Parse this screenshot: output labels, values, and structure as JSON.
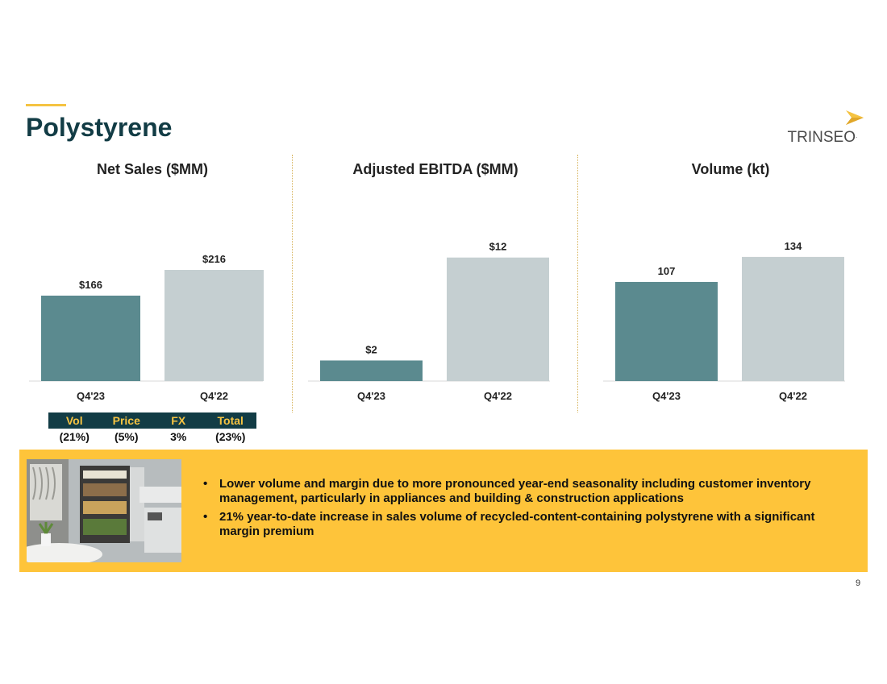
{
  "slide": {
    "title": "Polystyrene",
    "page_number": "9"
  },
  "logo": {
    "text": "TRINSEO",
    "trademark": ".",
    "icon": "trinseo-chevron-icon"
  },
  "colors": {
    "current_bar": "#5b8a8f",
    "prior_bar": "#c5cfd1",
    "title": "#123c45",
    "accent": "#f5c342",
    "callout_bg": "#fec43a"
  },
  "chart_data": [
    {
      "type": "bar",
      "title": "Net Sales ($MM)",
      "categories": [
        "Q4'23",
        "Q4'22"
      ],
      "values": [
        166,
        216
      ],
      "value_labels": [
        "$166",
        "$216"
      ],
      "ylim": [
        0,
        360
      ],
      "grid": false
    },
    {
      "type": "bar",
      "title": "Adjusted EBITDA ($MM)",
      "categories": [
        "Q4'23",
        "Q4'22"
      ],
      "values": [
        2,
        12
      ],
      "value_labels": [
        "$2",
        "$12"
      ],
      "ylim": [
        0,
        18
      ],
      "grid": false
    },
    {
      "type": "bar",
      "title": "Volume (kt)",
      "categories": [
        "Q4'23",
        "Q4'22"
      ],
      "values": [
        107,
        134
      ],
      "value_labels": [
        "107",
        "134"
      ],
      "ylim": [
        0,
        200
      ],
      "grid": false
    }
  ],
  "bridge": {
    "headers": [
      "Vol",
      "Price",
      "FX",
      "Total"
    ],
    "values": [
      "(21%)",
      "(5%)",
      "3%",
      "(23%)"
    ]
  },
  "callout": {
    "image": "kitchen-refrigerator-photo",
    "bullets": [
      "Lower volume and margin due to more pronounced year-end seasonality including customer inventory management, particularly in appliances and building & construction applications",
      "21% year-to-date increase in sales volume of recycled-content-containing polystyrene with a significant margin premium"
    ]
  }
}
